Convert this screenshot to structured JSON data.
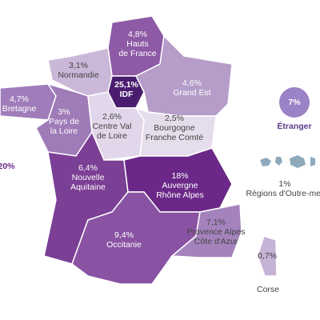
{
  "left_legend": [
    "20%"
  ],
  "regions": [
    {
      "name": "Hauts\nde France",
      "value": "4,8%"
    },
    {
      "name": "Normandie",
      "value": "3,1%"
    },
    {
      "name": "IDF",
      "value": "25,1%"
    },
    {
      "name": "Grand Est",
      "value": "4,6%"
    },
    {
      "name": "Bretagne",
      "value": "4,7%"
    },
    {
      "name": "Pays de\nla Loire",
      "value": "3%"
    },
    {
      "name": "Centre Val\nde Loire",
      "value": "2,6%"
    },
    {
      "name": "Bourgogne\nFranche Comté",
      "value": "2,5%"
    },
    {
      "name": "Nouvelle\nAquitaine",
      "value": "6,4%"
    },
    {
      "name": "Auvergne\nRhône Alpes",
      "value": "18%"
    },
    {
      "name": "Occitanie",
      "value": "9,4%"
    },
    {
      "name": "Provence Alpes\nCôte d'Azur",
      "value": "7,1%"
    },
    {
      "name": "Corse",
      "value": "0,7%"
    }
  ],
  "abroad": {
    "name": "Étranger",
    "value": "7%"
  },
  "overseas": {
    "name": "Régions d'Outre-mer",
    "value": "1%"
  }
}
